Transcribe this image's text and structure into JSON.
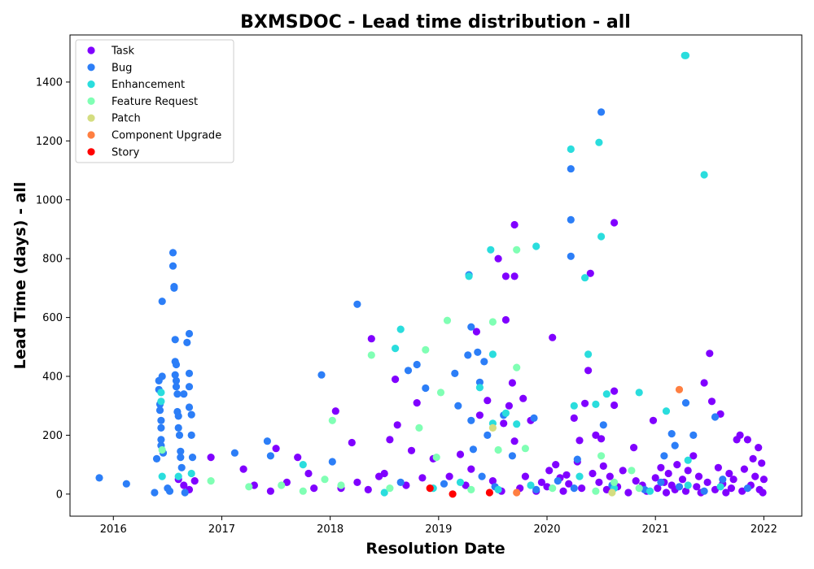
{
  "chart_data": {
    "type": "scatter",
    "title": "BXMSDOC - Lead time distribution - all",
    "xlabel": "Resolution Date",
    "ylabel": "Lead Time (days) - all",
    "xlim": [
      2015.6,
      2022.35
    ],
    "ylim": [
      -75,
      1560
    ],
    "x_ticks": [
      2016,
      2017,
      2018,
      2019,
      2020,
      2021,
      2022
    ],
    "y_ticks": [
      0,
      200,
      400,
      600,
      800,
      1000,
      1200,
      1400
    ],
    "grid": false,
    "legend_position": "top-left",
    "series": [
      {
        "name": "Task",
        "color": "#8000ff",
        "points": [
          [
            2016.9,
            125
          ],
          [
            2017.2,
            85
          ],
          [
            2017.5,
            155
          ],
          [
            2017.7,
            125
          ],
          [
            2017.8,
            70
          ],
          [
            2018.05,
            282
          ],
          [
            2018.2,
            175
          ],
          [
            2018.38,
            528
          ],
          [
            2018.45,
            60
          ],
          [
            2018.55,
            185
          ],
          [
            2018.6,
            390
          ],
          [
            2018.62,
            235
          ],
          [
            2018.75,
            148
          ],
          [
            2018.8,
            310
          ],
          [
            2018.95,
            120
          ],
          [
            2019.2,
            135
          ],
          [
            2019.35,
            552
          ],
          [
            2019.38,
            268
          ],
          [
            2019.45,
            318
          ],
          [
            2019.55,
            800
          ],
          [
            2019.62,
            740
          ],
          [
            2019.7,
            740
          ],
          [
            2019.7,
            915
          ],
          [
            2019.62,
            592
          ],
          [
            2019.65,
            300
          ],
          [
            2019.68,
            378
          ],
          [
            2019.7,
            180
          ],
          [
            2019.6,
            240
          ],
          [
            2019.78,
            325
          ],
          [
            2019.85,
            250
          ],
          [
            2020.05,
            532
          ],
          [
            2020.25,
            258
          ],
          [
            2020.3,
            182
          ],
          [
            2020.35,
            308
          ],
          [
            2020.38,
            420
          ],
          [
            2020.4,
            750
          ],
          [
            2020.45,
            200
          ],
          [
            2020.5,
            188
          ],
          [
            2020.62,
            922
          ],
          [
            2020.62,
            350
          ],
          [
            2020.62,
            302
          ],
          [
            2020.8,
            158
          ],
          [
            2020.98,
            250
          ],
          [
            2021.35,
            130
          ],
          [
            2021.45,
            378
          ],
          [
            2021.5,
            478
          ],
          [
            2021.52,
            315
          ],
          [
            2021.6,
            272
          ],
          [
            2021.75,
            185
          ],
          [
            2021.78,
            200
          ],
          [
            2021.85,
            185
          ],
          [
            2021.9,
            120
          ],
          [
            2021.95,
            158
          ],
          [
            2021.98,
            105
          ],
          [
            2016.6,
            50
          ],
          [
            2016.65,
            30
          ],
          [
            2016.7,
            15
          ],
          [
            2016.75,
            45
          ],
          [
            2017.3,
            30
          ],
          [
            2017.45,
            10
          ],
          [
            2017.6,
            40
          ],
          [
            2017.85,
            20
          ],
          [
            2018.1,
            20
          ],
          [
            2018.25,
            40
          ],
          [
            2018.35,
            15
          ],
          [
            2018.5,
            70
          ],
          [
            2018.7,
            30
          ],
          [
            2018.85,
            55
          ],
          [
            2019.1,
            60
          ],
          [
            2019.25,
            30
          ],
          [
            2019.3,
            85
          ],
          [
            2019.5,
            45
          ],
          [
            2019.58,
            10
          ],
          [
            2019.75,
            20
          ],
          [
            2019.8,
            60
          ],
          [
            2019.9,
            10
          ],
          [
            2019.95,
            40
          ],
          [
            2020.0,
            25
          ],
          [
            2020.02,
            80
          ],
          [
            2020.08,
            100
          ],
          [
            2020.12,
            55
          ],
          [
            2020.15,
            10
          ],
          [
            2020.18,
            65
          ],
          [
            2020.2,
            35
          ],
          [
            2020.28,
            110
          ],
          [
            2020.32,
            20
          ],
          [
            2020.42,
            70
          ],
          [
            2020.48,
            40
          ],
          [
            2020.52,
            95
          ],
          [
            2020.55,
            15
          ],
          [
            2020.58,
            60
          ],
          [
            2020.65,
            25
          ],
          [
            2020.7,
            80
          ],
          [
            2020.75,
            5
          ],
          [
            2020.82,
            45
          ],
          [
            2020.88,
            30
          ],
          [
            2020.92,
            10
          ],
          [
            2021.0,
            55
          ],
          [
            2021.02,
            20
          ],
          [
            2021.05,
            90
          ],
          [
            2021.08,
            40
          ],
          [
            2021.1,
            5
          ],
          [
            2021.12,
            70
          ],
          [
            2021.15,
            30
          ],
          [
            2021.18,
            15
          ],
          [
            2021.2,
            100
          ],
          [
            2021.25,
            50
          ],
          [
            2021.28,
            10
          ],
          [
            2021.3,
            80
          ],
          [
            2021.38,
            25
          ],
          [
            2021.4,
            60
          ],
          [
            2021.42,
            5
          ],
          [
            2021.48,
            40
          ],
          [
            2021.55,
            15
          ],
          [
            2021.58,
            90
          ],
          [
            2021.62,
            35
          ],
          [
            2021.65,
            5
          ],
          [
            2021.68,
            70
          ],
          [
            2021.7,
            20
          ],
          [
            2021.72,
            50
          ],
          [
            2021.8,
            10
          ],
          [
            2021.82,
            85
          ],
          [
            2021.88,
            30
          ],
          [
            2021.92,
            60
          ],
          [
            2021.96,
            15
          ],
          [
            2022.0,
            50
          ],
          [
            2021.99,
            5
          ]
        ]
      },
      {
        "name": "Bug",
        "color": "#2c7ef7",
        "points": [
          [
            2015.87,
            55
          ],
          [
            2016.12,
            35
          ],
          [
            2016.38,
            5
          ],
          [
            2016.4,
            120
          ],
          [
            2016.42,
            385
          ],
          [
            2016.42,
            355
          ],
          [
            2016.43,
            305
          ],
          [
            2016.43,
            285
          ],
          [
            2016.44,
            250
          ],
          [
            2016.44,
            225
          ],
          [
            2016.44,
            185
          ],
          [
            2016.44,
            165
          ],
          [
            2016.45,
            655
          ],
          [
            2016.45,
            400
          ],
          [
            2016.46,
            140
          ],
          [
            2016.55,
            820
          ],
          [
            2016.55,
            775
          ],
          [
            2016.56,
            705
          ],
          [
            2016.56,
            700
          ],
          [
            2016.57,
            525
          ],
          [
            2016.57,
            450
          ],
          [
            2016.58,
            440
          ],
          [
            2016.57,
            405
          ],
          [
            2016.58,
            385
          ],
          [
            2016.58,
            365
          ],
          [
            2016.59,
            340
          ],
          [
            2016.59,
            280
          ],
          [
            2016.6,
            265
          ],
          [
            2016.6,
            225
          ],
          [
            2016.61,
            200
          ],
          [
            2016.62,
            145
          ],
          [
            2016.62,
            125
          ],
          [
            2016.63,
            90
          ],
          [
            2016.65,
            340
          ],
          [
            2016.68,
            515
          ],
          [
            2016.7,
            545
          ],
          [
            2016.7,
            410
          ],
          [
            2016.7,
            365
          ],
          [
            2016.7,
            295
          ],
          [
            2016.72,
            270
          ],
          [
            2016.72,
            200
          ],
          [
            2016.73,
            125
          ],
          [
            2016.5,
            20
          ],
          [
            2016.52,
            10
          ],
          [
            2016.66,
            5
          ],
          [
            2017.12,
            140
          ],
          [
            2017.42,
            180
          ],
          [
            2017.45,
            130
          ],
          [
            2017.92,
            405
          ],
          [
            2018.02,
            110
          ],
          [
            2018.25,
            645
          ],
          [
            2018.72,
            420
          ],
          [
            2018.8,
            440
          ],
          [
            2018.88,
            360
          ],
          [
            2019.15,
            410
          ],
          [
            2019.18,
            300
          ],
          [
            2019.27,
            472
          ],
          [
            2019.28,
            745
          ],
          [
            2019.3,
            568
          ],
          [
            2019.3,
            250
          ],
          [
            2019.32,
            152
          ],
          [
            2019.36,
            482
          ],
          [
            2019.38,
            380
          ],
          [
            2019.42,
            450
          ],
          [
            2019.45,
            200
          ],
          [
            2019.6,
            268
          ],
          [
            2019.88,
            258
          ],
          [
            2019.68,
            130
          ],
          [
            2020.22,
            1105
          ],
          [
            2020.22,
            932
          ],
          [
            2020.22,
            808
          ],
          [
            2020.28,
            118
          ],
          [
            2020.5,
            1298
          ],
          [
            2020.52,
            235
          ],
          [
            2021.08,
            130
          ],
          [
            2021.15,
            205
          ],
          [
            2021.18,
            165
          ],
          [
            2021.28,
            310
          ],
          [
            2021.35,
            200
          ],
          [
            2021.55,
            262
          ],
          [
            2018.65,
            40
          ],
          [
            2019.05,
            35
          ],
          [
            2019.4,
            60
          ],
          [
            2019.52,
            25
          ],
          [
            2019.9,
            15
          ],
          [
            2020.1,
            45
          ],
          [
            2020.25,
            20
          ],
          [
            2020.6,
            30
          ],
          [
            2020.9,
            15
          ],
          [
            2021.05,
            40
          ],
          [
            2021.22,
            25
          ],
          [
            2021.45,
            10
          ],
          [
            2021.62,
            50
          ],
          [
            2021.85,
            20
          ]
        ]
      },
      {
        "name": "Enhancement",
        "color": "#2adddd",
        "points": [
          [
            2016.44,
            345
          ],
          [
            2016.44,
            315
          ],
          [
            2016.45,
            60
          ],
          [
            2016.6,
            60
          ],
          [
            2016.72,
            70
          ],
          [
            2017.75,
            100
          ],
          [
            2018.6,
            495
          ],
          [
            2018.65,
            560
          ],
          [
            2019.28,
            740
          ],
          [
            2019.38,
            362
          ],
          [
            2019.48,
            830
          ],
          [
            2019.5,
            475
          ],
          [
            2019.5,
            240
          ],
          [
            2019.62,
            275
          ],
          [
            2019.72,
            238
          ],
          [
            2019.9,
            842
          ],
          [
            2020.22,
            1172
          ],
          [
            2020.25,
            300
          ],
          [
            2020.35,
            735
          ],
          [
            2020.38,
            475
          ],
          [
            2020.45,
            305
          ],
          [
            2020.48,
            1195
          ],
          [
            2020.5,
            875
          ],
          [
            2020.55,
            340
          ],
          [
            2020.85,
            345
          ],
          [
            2021.1,
            282
          ],
          [
            2021.27,
            1490
          ],
          [
            2021.28,
            1490
          ],
          [
            2021.45,
            1085
          ],
          [
            2021.3,
            115
          ],
          [
            2018.5,
            5
          ],
          [
            2018.95,
            20
          ],
          [
            2019.2,
            40
          ],
          [
            2019.55,
            15
          ],
          [
            2019.85,
            30
          ],
          [
            2020.3,
            60
          ],
          [
            2020.62,
            20
          ],
          [
            2020.95,
            10
          ],
          [
            2021.3,
            30
          ],
          [
            2021.6,
            25
          ]
        ]
      },
      {
        "name": "Feature Request",
        "color": "#80ffb4",
        "points": [
          [
            2016.45,
            150
          ],
          [
            2016.9,
            45
          ],
          [
            2017.25,
            25
          ],
          [
            2017.55,
            30
          ],
          [
            2017.75,
            10
          ],
          [
            2017.95,
            50
          ],
          [
            2018.02,
            250
          ],
          [
            2018.38,
            472
          ],
          [
            2018.82,
            225
          ],
          [
            2018.88,
            490
          ],
          [
            2018.98,
            125
          ],
          [
            2019.02,
            345
          ],
          [
            2019.08,
            590
          ],
          [
            2019.5,
            585
          ],
          [
            2019.55,
            150
          ],
          [
            2019.72,
            830
          ],
          [
            2019.72,
            430
          ],
          [
            2019.8,
            155
          ],
          [
            2020.5,
            130
          ],
          [
            2020.62,
            40
          ],
          [
            2020.78,
            80
          ],
          [
            2020.85,
            20
          ],
          [
            2018.1,
            30
          ],
          [
            2018.55,
            20
          ],
          [
            2019.3,
            15
          ],
          [
            2020.05,
            20
          ],
          [
            2020.45,
            10
          ]
        ]
      },
      {
        "name": "Patch",
        "color": "#d4dd80",
        "points": [
          [
            2019.5,
            225
          ],
          [
            2020.6,
            5
          ]
        ]
      },
      {
        "name": "Component Upgrade",
        "color": "#ff7f41",
        "points": [
          [
            2021.22,
            355
          ],
          [
            2019.72,
            5
          ]
        ]
      },
      {
        "name": "Story",
        "color": "#ff0000",
        "points": [
          [
            2018.92,
            20
          ],
          [
            2019.13,
            0
          ],
          [
            2019.47,
            5
          ]
        ]
      }
    ]
  }
}
